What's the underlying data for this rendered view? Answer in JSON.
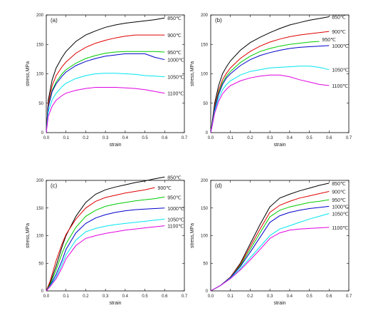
{
  "figure": {
    "colors": {
      "850": "#000000",
      "900": "#e00000",
      "950": "#00cc00",
      "1000": "#0000cc",
      "1050": "#00e5ee",
      "1100": "#e000e0"
    }
  },
  "chart_data": [
    {
      "type": "line",
      "panel_label": "(a)",
      "xlabel": "strain",
      "ylabel": "stress,MPa",
      "xlim": [
        0.0,
        0.7
      ],
      "ylim": [
        0,
        200
      ],
      "xticks": [
        "0.0",
        "0.1",
        "0.2",
        "0.3",
        "0.4",
        "0.5",
        "0.6",
        "0.7"
      ],
      "yticks": [
        "0",
        "50",
        "100",
        "150",
        "200"
      ],
      "series": [
        {
          "name": "850℃",
          "key": "850",
          "x": [
            0,
            0.01,
            0.03,
            0.05,
            0.08,
            0.1,
            0.15,
            0.2,
            0.25,
            0.3,
            0.35,
            0.4,
            0.45,
            0.5,
            0.55,
            0.6
          ],
          "y": [
            0,
            55,
            90,
            110,
            128,
            138,
            155,
            166,
            173,
            179,
            183,
            186,
            188,
            190,
            192,
            195
          ]
        },
        {
          "name": "900℃",
          "key": "900",
          "x": [
            0,
            0.01,
            0.03,
            0.05,
            0.08,
            0.1,
            0.15,
            0.2,
            0.25,
            0.3,
            0.35,
            0.4,
            0.45,
            0.5,
            0.55,
            0.6
          ],
          "y": [
            0,
            50,
            80,
            97,
            112,
            120,
            135,
            145,
            152,
            157,
            161,
            164,
            166,
            166,
            166,
            166
          ]
        },
        {
          "name": "950℃",
          "key": "950",
          "x": [
            0,
            0.01,
            0.03,
            0.05,
            0.08,
            0.1,
            0.15,
            0.2,
            0.25,
            0.3,
            0.35,
            0.4,
            0.45,
            0.5,
            0.55,
            0.6
          ],
          "y": [
            0,
            45,
            72,
            86,
            100,
            107,
            118,
            126,
            131,
            135,
            137,
            138,
            138,
            138,
            138,
            137
          ]
        },
        {
          "name": "1000℃",
          "key": "1000",
          "x": [
            0,
            0.01,
            0.03,
            0.05,
            0.08,
            0.1,
            0.15,
            0.2,
            0.25,
            0.3,
            0.35,
            0.4,
            0.45,
            0.5,
            0.55,
            0.6
          ],
          "y": [
            0,
            43,
            70,
            83,
            96,
            103,
            114,
            121,
            126,
            130,
            132,
            134,
            134,
            134,
            128,
            124
          ]
        },
        {
          "name": "1050℃",
          "key": "1050",
          "x": [
            0,
            0.01,
            0.03,
            0.05,
            0.08,
            0.1,
            0.15,
            0.2,
            0.25,
            0.3,
            0.35,
            0.4,
            0.45,
            0.5,
            0.55,
            0.6
          ],
          "y": [
            0,
            35,
            56,
            67,
            78,
            84,
            92,
            97,
            100,
            101,
            101,
            100,
            99,
            97,
            96,
            95
          ]
        },
        {
          "name": "1100℃",
          "key": "1100",
          "x": [
            0,
            0.01,
            0.03,
            0.05,
            0.08,
            0.1,
            0.15,
            0.2,
            0.25,
            0.3,
            0.35,
            0.4,
            0.45,
            0.5,
            0.55,
            0.6
          ],
          "y": [
            0,
            28,
            45,
            55,
            63,
            67,
            72,
            75,
            77,
            77,
            77,
            76,
            75,
            73,
            70,
            67
          ]
        }
      ]
    },
    {
      "type": "line",
      "panel_label": "(b)",
      "xlabel": "strain",
      "ylabel": "stress,MPa",
      "xlim": [
        0.0,
        0.7
      ],
      "ylim": [
        0,
        200
      ],
      "xticks": [
        "0.0",
        "0.1",
        "0.2",
        "0.3",
        "0.4",
        "0.5",
        "0.6",
        "0.7"
      ],
      "yticks": [
        "0",
        "50",
        "100",
        "150",
        "200"
      ],
      "series": [
        {
          "name": "850℃",
          "key": "850",
          "x": [
            0,
            0.01,
            0.02,
            0.04,
            0.06,
            0.08,
            0.1,
            0.15,
            0.2,
            0.25,
            0.3,
            0.35,
            0.4,
            0.45,
            0.5,
            0.55,
            0.6
          ],
          "y": [
            0,
            25,
            50,
            80,
            100,
            112,
            122,
            140,
            153,
            162,
            170,
            177,
            183,
            187,
            191,
            194,
            197
          ]
        },
        {
          "name": "900℃",
          "key": "900",
          "x": [
            0,
            0.01,
            0.02,
            0.04,
            0.06,
            0.08,
            0.1,
            0.15,
            0.2,
            0.25,
            0.3,
            0.35,
            0.4,
            0.45,
            0.5,
            0.55,
            0.6
          ],
          "y": [
            0,
            22,
            45,
            72,
            90,
            101,
            110,
            126,
            138,
            147,
            154,
            159,
            163,
            166,
            168,
            170,
            172
          ]
        },
        {
          "name": "950℃",
          "key": "950",
          "x": [
            0,
            0.01,
            0.02,
            0.04,
            0.06,
            0.08,
            0.1,
            0.15,
            0.2,
            0.25,
            0.3,
            0.35,
            0.4,
            0.45,
            0.5,
            0.55
          ],
          "y": [
            0,
            20,
            42,
            68,
            85,
            96,
            104,
            119,
            130,
            138,
            143,
            147,
            150,
            152,
            154,
            155
          ]
        },
        {
          "name": "1000℃",
          "key": "1000",
          "x": [
            0,
            0.01,
            0.02,
            0.04,
            0.06,
            0.08,
            0.1,
            0.15,
            0.2,
            0.25,
            0.3,
            0.35,
            0.4,
            0.45,
            0.5,
            0.55,
            0.6
          ],
          "y": [
            0,
            20,
            40,
            65,
            82,
            93,
            100,
            114,
            124,
            131,
            136,
            140,
            143,
            145,
            146,
            147,
            148
          ]
        },
        {
          "name": "1050℃",
          "key": "1050",
          "x": [
            0,
            0.01,
            0.02,
            0.04,
            0.06,
            0.08,
            0.1,
            0.15,
            0.2,
            0.25,
            0.3,
            0.35,
            0.4,
            0.45,
            0.5,
            0.55,
            0.6
          ],
          "y": [
            0,
            18,
            36,
            58,
            73,
            82,
            88,
            98,
            104,
            107,
            110,
            111,
            112,
            113,
            113,
            111,
            107
          ]
        },
        {
          "name": "1100℃",
          "key": "1100",
          "x": [
            0,
            0.01,
            0.02,
            0.04,
            0.06,
            0.08,
            0.1,
            0.15,
            0.2,
            0.25,
            0.3,
            0.35,
            0.4,
            0.45,
            0.5,
            0.55,
            0.6
          ],
          "y": [
            0,
            16,
            33,
            53,
            66,
            74,
            80,
            88,
            93,
            96,
            98,
            98,
            95,
            90,
            86,
            82,
            80
          ]
        }
      ]
    },
    {
      "type": "line",
      "panel_label": "(c)",
      "xlabel": "strain",
      "ylabel": "stress,MPa",
      "xlim": [
        0.0,
        0.7
      ],
      "ylim": [
        0,
        200
      ],
      "xticks": [
        "0.0",
        "0.1",
        "0.2",
        "0.3",
        "0.4",
        "0.5",
        "0.6",
        "0.7"
      ],
      "yticks": [
        "0",
        "50",
        "100",
        "150",
        "200"
      ],
      "series": [
        {
          "name": "850℃",
          "key": "850",
          "x": [
            0,
            0.02,
            0.05,
            0.08,
            0.1,
            0.15,
            0.2,
            0.25,
            0.3,
            0.35,
            0.4,
            0.45,
            0.5,
            0.55,
            0.6
          ],
          "y": [
            0,
            15,
            45,
            80,
            100,
            135,
            160,
            175,
            183,
            188,
            192,
            196,
            199,
            203,
            206
          ]
        },
        {
          "name": "900℃",
          "key": "900",
          "x": [
            0,
            0.02,
            0.05,
            0.08,
            0.1,
            0.15,
            0.2,
            0.25,
            0.3,
            0.35,
            0.4,
            0.45,
            0.5,
            0.55
          ],
          "y": [
            0,
            18,
            55,
            85,
            102,
            130,
            150,
            162,
            169,
            173,
            177,
            180,
            183,
            187
          ]
        },
        {
          "name": "950℃",
          "key": "950",
          "x": [
            0,
            0.02,
            0.05,
            0.08,
            0.1,
            0.15,
            0.2,
            0.25,
            0.3,
            0.35,
            0.4,
            0.45,
            0.5,
            0.55,
            0.6
          ],
          "y": [
            0,
            12,
            38,
            68,
            85,
            115,
            135,
            146,
            153,
            157,
            160,
            163,
            165,
            167,
            170
          ]
        },
        {
          "name": "1000℃",
          "key": "1000",
          "x": [
            0,
            0.02,
            0.05,
            0.08,
            0.1,
            0.15,
            0.2,
            0.25,
            0.3,
            0.35,
            0.4,
            0.45,
            0.5,
            0.55,
            0.6
          ],
          "y": [
            0,
            10,
            30,
            55,
            75,
            105,
            122,
            132,
            138,
            142,
            145,
            147,
            148,
            149,
            150
          ]
        },
        {
          "name": "1050℃",
          "key": "1050",
          "x": [
            0,
            0.02,
            0.05,
            0.08,
            0.1,
            0.15,
            0.2,
            0.25,
            0.3,
            0.35,
            0.4,
            0.45,
            0.5,
            0.55,
            0.6
          ],
          "y": [
            0,
            9,
            25,
            48,
            65,
            92,
            107,
            113,
            117,
            120,
            122,
            124,
            126,
            128,
            130
          ]
        },
        {
          "name": "1100℃",
          "key": "1100",
          "x": [
            0,
            0.02,
            0.05,
            0.08,
            0.1,
            0.15,
            0.2,
            0.25,
            0.3,
            0.35,
            0.4,
            0.45,
            0.5,
            0.55,
            0.6
          ],
          "y": [
            0,
            8,
            22,
            42,
            58,
            82,
            95,
            100,
            104,
            107,
            110,
            112,
            114,
            116,
            118
          ]
        }
      ]
    },
    {
      "type": "line",
      "panel_label": "(d)",
      "xlabel": "strain",
      "ylabel": "stress,MPa",
      "xlim": [
        0.0,
        0.7
      ],
      "ylim": [
        0,
        200
      ],
      "xticks": [
        "0.0",
        "0.1",
        "0.2",
        "0.3",
        "0.4",
        "0.5",
        "0.6",
        "0.7"
      ],
      "yticks": [
        "0",
        "50",
        "100",
        "150",
        "200"
      ],
      "series": [
        {
          "name": "850℃",
          "key": "850",
          "x": [
            0,
            0.05,
            0.1,
            0.15,
            0.2,
            0.25,
            0.3,
            0.35,
            0.4,
            0.45,
            0.5,
            0.55,
            0.6
          ],
          "y": [
            0,
            10,
            25,
            50,
            85,
            120,
            152,
            168,
            175,
            181,
            186,
            191,
            195
          ]
        },
        {
          "name": "900℃",
          "key": "900",
          "x": [
            0,
            0.05,
            0.1,
            0.15,
            0.2,
            0.25,
            0.3,
            0.35,
            0.4,
            0.45,
            0.5,
            0.55,
            0.6
          ],
          "y": [
            0,
            10,
            25,
            48,
            80,
            112,
            142,
            155,
            162,
            168,
            172,
            176,
            180
          ]
        },
        {
          "name": "950℃",
          "key": "950",
          "x": [
            0,
            0.05,
            0.1,
            0.15,
            0.2,
            0.25,
            0.3,
            0.35,
            0.4,
            0.45,
            0.5,
            0.55,
            0.6
          ],
          "y": [
            0,
            10,
            24,
            46,
            75,
            105,
            134,
            146,
            152,
            156,
            160,
            162,
            165
          ]
        },
        {
          "name": "1000℃",
          "key": "1000",
          "x": [
            0,
            0.05,
            0.1,
            0.15,
            0.2,
            0.25,
            0.3,
            0.35,
            0.4,
            0.45,
            0.5,
            0.55,
            0.6
          ],
          "y": [
            0,
            10,
            24,
            44,
            70,
            97,
            124,
            136,
            142,
            146,
            149,
            151,
            153
          ]
        },
        {
          "name": "1050℃",
          "key": "1050",
          "x": [
            0,
            0.05,
            0.1,
            0.15,
            0.2,
            0.25,
            0.3,
            0.35,
            0.4,
            0.45,
            0.5,
            0.55,
            0.6
          ],
          "y": [
            0,
            10,
            23,
            40,
            60,
            80,
            100,
            112,
            118,
            124,
            130,
            135,
            140
          ]
        },
        {
          "name": "1100℃",
          "key": "1100",
          "x": [
            0,
            0.05,
            0.1,
            0.15,
            0.2,
            0.25,
            0.3,
            0.35,
            0.4,
            0.45,
            0.5,
            0.55,
            0.6
          ],
          "y": [
            0,
            10,
            22,
            38,
            56,
            75,
            95,
            105,
            110,
            112,
            113,
            114,
            115
          ]
        }
      ]
    }
  ]
}
